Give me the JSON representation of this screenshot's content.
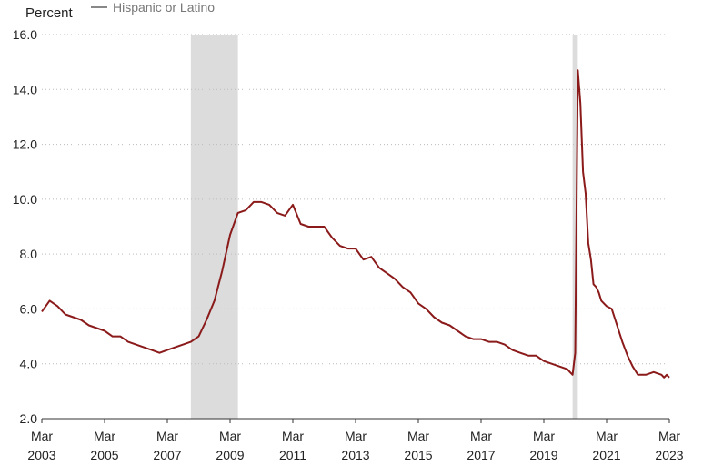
{
  "chart_data": {
    "type": "line",
    "ylabel": "Percent",
    "ylim": [
      2.0,
      16.0
    ],
    "yticks": [
      "2.0",
      "4.0",
      "6.0",
      "8.0",
      "10.0",
      "12.0",
      "14.0",
      "16.0"
    ],
    "xticks": [
      {
        "month": "Mar",
        "year": "2003"
      },
      {
        "month": "Mar",
        "year": "2005"
      },
      {
        "month": "Mar",
        "year": "2007"
      },
      {
        "month": "Mar",
        "year": "2009"
      },
      {
        "month": "Mar",
        "year": "2011"
      },
      {
        "month": "Mar",
        "year": "2013"
      },
      {
        "month": "Mar",
        "year": "2015"
      },
      {
        "month": "Mar",
        "year": "2017"
      },
      {
        "month": "Mar",
        "year": "2019"
      },
      {
        "month": "Mar",
        "year": "2021"
      },
      {
        "month": "Mar",
        "year": "2023"
      }
    ],
    "recessions": [
      {
        "start": "2007-12",
        "end": "2009-06"
      },
      {
        "start": "2020-02",
        "end": "2020-04"
      }
    ],
    "series": [
      {
        "name": "Hispanic or Latino",
        "color": "#8b1a1a",
        "points": [
          [
            "2003-03",
            5.9
          ],
          [
            "2003-06",
            6.3
          ],
          [
            "2003-09",
            6.1
          ],
          [
            "2003-12",
            5.8
          ],
          [
            "2004-03",
            5.7
          ],
          [
            "2004-06",
            5.6
          ],
          [
            "2004-09",
            5.4
          ],
          [
            "2004-12",
            5.3
          ],
          [
            "2005-03",
            5.2
          ],
          [
            "2005-06",
            5.0
          ],
          [
            "2005-09",
            5.0
          ],
          [
            "2005-12",
            4.8
          ],
          [
            "2006-03",
            4.7
          ],
          [
            "2006-06",
            4.6
          ],
          [
            "2006-09",
            4.5
          ],
          [
            "2006-12",
            4.4
          ],
          [
            "2007-03",
            4.5
          ],
          [
            "2007-06",
            4.6
          ],
          [
            "2007-09",
            4.7
          ],
          [
            "2007-12",
            4.8
          ],
          [
            "2008-03",
            5.0
          ],
          [
            "2008-06",
            5.6
          ],
          [
            "2008-09",
            6.3
          ],
          [
            "2008-12",
            7.4
          ],
          [
            "2009-03",
            8.7
          ],
          [
            "2009-06",
            9.5
          ],
          [
            "2009-09",
            9.6
          ],
          [
            "2009-12",
            9.9
          ],
          [
            "2010-03",
            9.9
          ],
          [
            "2010-06",
            9.8
          ],
          [
            "2010-09",
            9.5
          ],
          [
            "2010-12",
            9.4
          ],
          [
            "2011-03",
            9.8
          ],
          [
            "2011-06",
            9.1
          ],
          [
            "2011-09",
            9.0
          ],
          [
            "2011-12",
            9.0
          ],
          [
            "2012-03",
            9.0
          ],
          [
            "2012-06",
            8.6
          ],
          [
            "2012-09",
            8.3
          ],
          [
            "2012-12",
            8.2
          ],
          [
            "2013-03",
            8.2
          ],
          [
            "2013-06",
            7.8
          ],
          [
            "2013-09",
            7.9
          ],
          [
            "2013-12",
            7.5
          ],
          [
            "2014-03",
            7.3
          ],
          [
            "2014-06",
            7.1
          ],
          [
            "2014-09",
            6.8
          ],
          [
            "2014-12",
            6.6
          ],
          [
            "2015-03",
            6.2
          ],
          [
            "2015-06",
            6.0
          ],
          [
            "2015-09",
            5.7
          ],
          [
            "2015-12",
            5.5
          ],
          [
            "2016-03",
            5.4
          ],
          [
            "2016-06",
            5.2
          ],
          [
            "2016-09",
            5.0
          ],
          [
            "2016-12",
            4.9
          ],
          [
            "2017-03",
            4.9
          ],
          [
            "2017-06",
            4.8
          ],
          [
            "2017-09",
            4.8
          ],
          [
            "2017-12",
            4.7
          ],
          [
            "2018-03",
            4.5
          ],
          [
            "2018-06",
            4.4
          ],
          [
            "2018-09",
            4.3
          ],
          [
            "2018-12",
            4.3
          ],
          [
            "2019-03",
            4.1
          ],
          [
            "2019-06",
            4.0
          ],
          [
            "2019-09",
            3.9
          ],
          [
            "2019-12",
            3.8
          ],
          [
            "2020-01",
            3.7
          ],
          [
            "2020-02",
            3.6
          ],
          [
            "2020-03",
            4.4
          ],
          [
            "2020-04",
            14.7
          ],
          [
            "2020-05",
            13.5
          ],
          [
            "2020-06",
            11.0
          ],
          [
            "2020-07",
            10.2
          ],
          [
            "2020-08",
            8.4
          ],
          [
            "2020-09",
            7.8
          ],
          [
            "2020-10",
            6.9
          ],
          [
            "2020-11",
            6.8
          ],
          [
            "2020-12",
            6.6
          ],
          [
            "2021-01",
            6.3
          ],
          [
            "2021-02",
            6.2
          ],
          [
            "2021-03",
            6.1
          ],
          [
            "2021-05",
            6.0
          ],
          [
            "2021-07",
            5.4
          ],
          [
            "2021-09",
            4.8
          ],
          [
            "2021-11",
            4.3
          ],
          [
            "2022-01",
            3.9
          ],
          [
            "2022-03",
            3.6
          ],
          [
            "2022-06",
            3.6
          ],
          [
            "2022-09",
            3.7
          ],
          [
            "2022-12",
            3.6
          ],
          [
            "2023-01",
            3.5
          ],
          [
            "2023-02",
            3.6
          ],
          [
            "2023-03",
            3.5
          ]
        ]
      }
    ],
    "grid": "horizontal-dotted",
    "legend_position": "top-left"
  }
}
